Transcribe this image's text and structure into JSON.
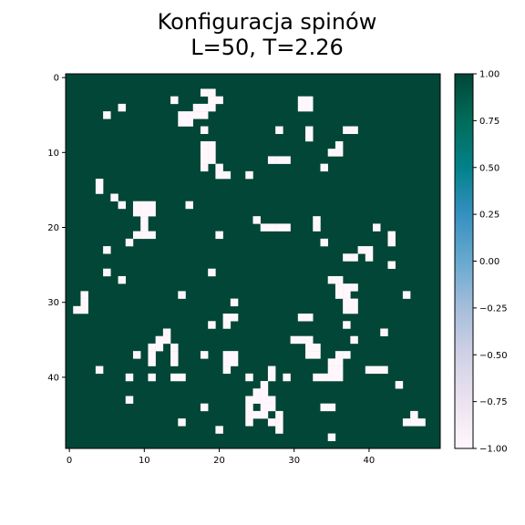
{
  "chart_data": {
    "type": "heatmap",
    "title_lines": [
      "Konfiguracja spinów",
      "L=50, T=2.26"
    ],
    "xlabel": "",
    "ylabel": "",
    "grid_size": 50,
    "xlim": [
      -0.5,
      49.5
    ],
    "ylim": [
      49.5,
      -0.5
    ],
    "x_ticks": [
      "0",
      "10",
      "20",
      "30",
      "40"
    ],
    "y_ticks": [
      "0",
      "10",
      "20",
      "30",
      "40"
    ],
    "value_range": [
      -1.0,
      1.0
    ],
    "colormap": "PuBuGn",
    "colors": {
      "spin_up": "#014636",
      "spin_down": "#fff7fb"
    },
    "colorbar_ticks": [
      "1.00",
      "0.75",
      "0.50",
      "0.25",
      "0.00",
      "−0.25",
      "−0.50",
      "−0.75",
      "−1.00"
    ],
    "default_value": 1,
    "spin_down_cells": [
      [
        2,
        18
      ],
      [
        2,
        19
      ],
      [
        3,
        14
      ],
      [
        3,
        19
      ],
      [
        3,
        20
      ],
      [
        3,
        31
      ],
      [
        3,
        32
      ],
      [
        4,
        7
      ],
      [
        4,
        17
      ],
      [
        4,
        18
      ],
      [
        4,
        19
      ],
      [
        4,
        31
      ],
      [
        4,
        32
      ],
      [
        5,
        5
      ],
      [
        5,
        15
      ],
      [
        5,
        16
      ],
      [
        5,
        17
      ],
      [
        5,
        18
      ],
      [
        6,
        15
      ],
      [
        6,
        16
      ],
      [
        7,
        18
      ],
      [
        7,
        28
      ],
      [
        7,
        32
      ],
      [
        7,
        37
      ],
      [
        7,
        38
      ],
      [
        8,
        32
      ],
      [
        9,
        18
      ],
      [
        9,
        19
      ],
      [
        9,
        36
      ],
      [
        10,
        18
      ],
      [
        10,
        19
      ],
      [
        10,
        35
      ],
      [
        10,
        36
      ],
      [
        11,
        18
      ],
      [
        11,
        19
      ],
      [
        11,
        27
      ],
      [
        11,
        28
      ],
      [
        11,
        29
      ],
      [
        12,
        18
      ],
      [
        12,
        20
      ],
      [
        12,
        34
      ],
      [
        13,
        20
      ],
      [
        13,
        21
      ],
      [
        13,
        24
      ],
      [
        14,
        4
      ],
      [
        15,
        4
      ],
      [
        16,
        6
      ],
      [
        17,
        7
      ],
      [
        17,
        9
      ],
      [
        17,
        10
      ],
      [
        17,
        11
      ],
      [
        17,
        16
      ],
      [
        18,
        9
      ],
      [
        18,
        10
      ],
      [
        18,
        11
      ],
      [
        19,
        10
      ],
      [
        19,
        25
      ],
      [
        19,
        33
      ],
      [
        20,
        10
      ],
      [
        20,
        26
      ],
      [
        20,
        27
      ],
      [
        20,
        28
      ],
      [
        20,
        29
      ],
      [
        20,
        33
      ],
      [
        20,
        41
      ],
      [
        21,
        9
      ],
      [
        21,
        10
      ],
      [
        21,
        11
      ],
      [
        21,
        20
      ],
      [
        21,
        43
      ],
      [
        22,
        8
      ],
      [
        22,
        34
      ],
      [
        22,
        43
      ],
      [
        23,
        5
      ],
      [
        23,
        39
      ],
      [
        23,
        40
      ],
      [
        24,
        37
      ],
      [
        24,
        38
      ],
      [
        24,
        40
      ],
      [
        25,
        43
      ],
      [
        26,
        5
      ],
      [
        26,
        19
      ],
      [
        27,
        7
      ],
      [
        27,
        35
      ],
      [
        27,
        36
      ],
      [
        28,
        36
      ],
      [
        28,
        37
      ],
      [
        28,
        38
      ],
      [
        29,
        2
      ],
      [
        29,
        15
      ],
      [
        29,
        36
      ],
      [
        29,
        37
      ],
      [
        29,
        45
      ],
      [
        30,
        2
      ],
      [
        30,
        22
      ],
      [
        30,
        37
      ],
      [
        30,
        38
      ],
      [
        31,
        1
      ],
      [
        31,
        2
      ],
      [
        31,
        37
      ],
      [
        31,
        38
      ],
      [
        32,
        21
      ],
      [
        32,
        22
      ],
      [
        32,
        31
      ],
      [
        32,
        32
      ],
      [
        33,
        19
      ],
      [
        33,
        21
      ],
      [
        33,
        37
      ],
      [
        34,
        13
      ],
      [
        34,
        42
      ],
      [
        35,
        12
      ],
      [
        35,
        13
      ],
      [
        35,
        30
      ],
      [
        35,
        31
      ],
      [
        35,
        32
      ],
      [
        35,
        38
      ],
      [
        36,
        11
      ],
      [
        36,
        12
      ],
      [
        36,
        14
      ],
      [
        36,
        32
      ],
      [
        36,
        33
      ],
      [
        37,
        9
      ],
      [
        37,
        11
      ],
      [
        37,
        14
      ],
      [
        37,
        18
      ],
      [
        37,
        21
      ],
      [
        37,
        22
      ],
      [
        37,
        32
      ],
      [
        37,
        33
      ],
      [
        37,
        36
      ],
      [
        37,
        37
      ],
      [
        38,
        11
      ],
      [
        38,
        14
      ],
      [
        38,
        21
      ],
      [
        38,
        22
      ],
      [
        38,
        35
      ],
      [
        38,
        36
      ],
      [
        39,
        4
      ],
      [
        39,
        21
      ],
      [
        39,
        27
      ],
      [
        39,
        35
      ],
      [
        39,
        36
      ],
      [
        39,
        40
      ],
      [
        39,
        41
      ],
      [
        39,
        42
      ],
      [
        40,
        8
      ],
      [
        40,
        11
      ],
      [
        40,
        14
      ],
      [
        40,
        15
      ],
      [
        40,
        24
      ],
      [
        40,
        27
      ],
      [
        40,
        29
      ],
      [
        40,
        33
      ],
      [
        40,
        34
      ],
      [
        40,
        35
      ],
      [
        40,
        36
      ],
      [
        41,
        26
      ],
      [
        41,
        44
      ],
      [
        42,
        25
      ],
      [
        42,
        26
      ],
      [
        43,
        8
      ],
      [
        43,
        24
      ],
      [
        43,
        25
      ],
      [
        43,
        26
      ],
      [
        43,
        27
      ],
      [
        44,
        18
      ],
      [
        44,
        24
      ],
      [
        44,
        26
      ],
      [
        44,
        27
      ],
      [
        44,
        34
      ],
      [
        44,
        35
      ],
      [
        45,
        24
      ],
      [
        45,
        25
      ],
      [
        45,
        26
      ],
      [
        45,
        28
      ],
      [
        45,
        46
      ],
      [
        46,
        15
      ],
      [
        46,
        24
      ],
      [
        46,
        27
      ],
      [
        46,
        28
      ],
      [
        46,
        45
      ],
      [
        46,
        46
      ],
      [
        46,
        47
      ],
      [
        47,
        20
      ],
      [
        47,
        28
      ],
      [
        48,
        35
      ]
    ]
  }
}
